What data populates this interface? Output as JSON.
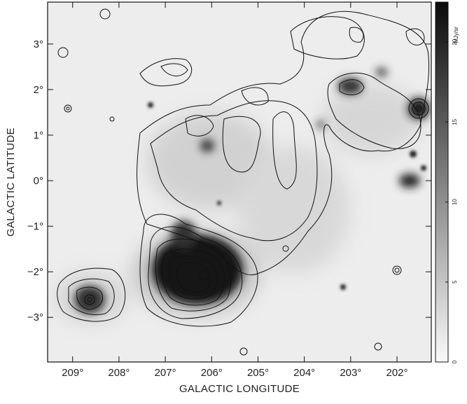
{
  "chart_data": {
    "type": "image",
    "xlabel": "GALACTIC LONGITUDE",
    "ylabel": "GALACTIC LATITUDE",
    "xlim": [
      209.54,
      201.26
    ],
    "ylim": [
      -3.98,
      3.92
    ],
    "xticks": [
      {
        "value": 209,
        "label": "209°"
      },
      {
        "value": 208,
        "label": "208°"
      },
      {
        "value": 207,
        "label": "207°"
      },
      {
        "value": 206,
        "label": "206°"
      },
      {
        "value": 205,
        "label": "205°"
      },
      {
        "value": 204,
        "label": "204°"
      },
      {
        "value": 203,
        "label": "203°"
      },
      {
        "value": 202,
        "label": "202°"
      }
    ],
    "yticks": [
      {
        "value": -3,
        "label": "−3°"
      },
      {
        "value": -2,
        "label": "−2°"
      },
      {
        "value": -1,
        "label": "−1°"
      },
      {
        "value": 0,
        "label": "0°"
      },
      {
        "value": 1,
        "label": "1°"
      },
      {
        "value": 2,
        "label": "2°"
      },
      {
        "value": 3,
        "label": "3°"
      }
    ],
    "colorbar": {
      "label": "MJy/sr",
      "lim": [
        0,
        22.5
      ],
      "ticks": [
        0,
        5,
        10,
        15,
        20
      ]
    }
  }
}
